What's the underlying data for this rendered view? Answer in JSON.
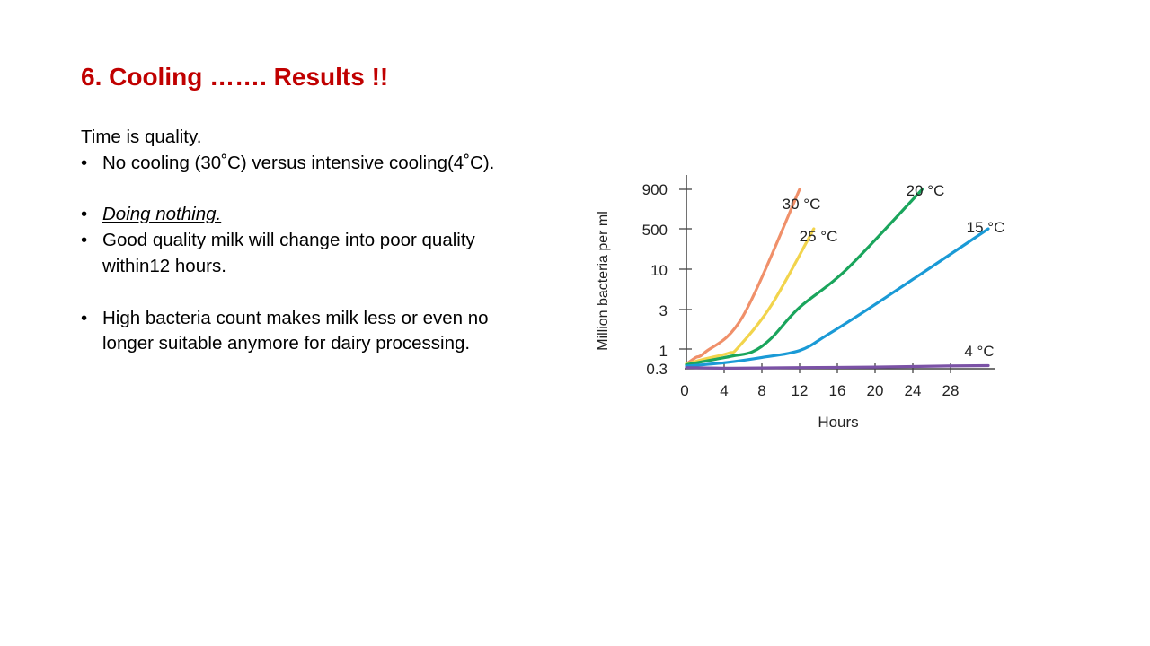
{
  "slide": {
    "title": "6. Cooling ……. Results !!",
    "intro": "Time is quality.",
    "bullets": [
      "No cooling (30˚C) versus intensive cooling(4˚C).",
      "Doing nothing.",
      "Good quality milk will change into poor quality within12 hours.",
      "High bacteria count makes milk less or even no longer suitable anymore for dairy processing."
    ]
  },
  "chart_data": {
    "type": "line",
    "title": "",
    "xlabel": "Hours",
    "ylabel": "Million bacteria per ml",
    "x_ticks": [
      "0",
      "4",
      "8",
      "12",
      "16",
      "20",
      "24",
      "28"
    ],
    "y_ticks": [
      "0.3",
      "1",
      "3",
      "10",
      "500",
      "900"
    ],
    "xlim": [
      0,
      32
    ],
    "grid": false,
    "series": [
      {
        "name": "30 °C",
        "color": "#f0906a",
        "points": [
          [
            0,
            0.35
          ],
          [
            1,
            0.55
          ],
          [
            2,
            0.8
          ],
          [
            6,
            2.5
          ],
          [
            12,
            900
          ]
        ]
      },
      {
        "name": "25 °C",
        "color": "#f2d44c",
        "points": [
          [
            0,
            0.35
          ],
          [
            2,
            0.5
          ],
          [
            4.5,
            0.75
          ],
          [
            5.5,
            1.05
          ],
          [
            9,
            3.4
          ],
          [
            13.5,
            500
          ]
        ]
      },
      {
        "name": "20 °C",
        "color": "#1aa55c",
        "points": [
          [
            0,
            0.33
          ],
          [
            3,
            0.48
          ],
          [
            5,
            0.62
          ],
          [
            7,
            0.82
          ],
          [
            9,
            1.35
          ],
          [
            12,
            3.2
          ],
          [
            17,
            10
          ],
          [
            25,
            900
          ]
        ]
      },
      {
        "name": "15 °C",
        "color": "#1a9ad6",
        "points": [
          [
            0,
            0.3
          ],
          [
            4,
            0.38
          ],
          [
            8,
            0.55
          ],
          [
            12,
            0.9
          ],
          [
            15,
            1.5
          ],
          [
            21,
            4.2
          ],
          [
            32,
            500
          ]
        ]
      },
      {
        "name": "4 °C",
        "color": "#7b52a6",
        "points": [
          [
            0,
            0.27
          ],
          [
            5,
            0.26
          ],
          [
            12,
            0.27
          ],
          [
            20,
            0.28
          ],
          [
            27,
            0.3
          ],
          [
            32,
            0.31
          ]
        ]
      }
    ]
  }
}
